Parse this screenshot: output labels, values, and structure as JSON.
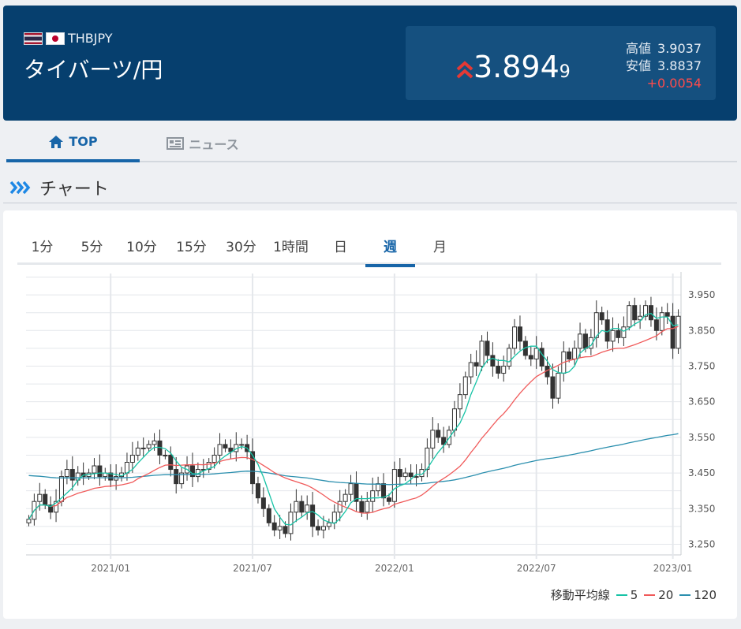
{
  "header": {
    "code": "THBJPY",
    "name": "タイバーツ/円",
    "price_main": "3.894",
    "price_sub": "9",
    "high_label": "高値",
    "high_value": "3.9037",
    "low_label": "安値",
    "low_value": "3.8837",
    "change": "+0.0054",
    "colors": {
      "bg": "#063f6e",
      "box": "#15507f",
      "up": "#e53935"
    }
  },
  "tabs": [
    {
      "label": "TOP",
      "icon": "home-icon"
    },
    {
      "label": "ニュース",
      "icon": "newspaper-icon"
    }
  ],
  "section": {
    "title": "チャート",
    "icon": "triple-chevron-right-icon"
  },
  "period_tabs": [
    "1分",
    "5分",
    "10分",
    "15分",
    "30分",
    "1時間",
    "日",
    "週",
    "月"
  ],
  "active_period": "週",
  "legend": {
    "title": "移動平均線",
    "items": [
      {
        "label": "5",
        "color": "#17c3a6"
      },
      {
        "label": "20",
        "color": "#f05a5a"
      },
      {
        "label": "120",
        "color": "#2b8fae"
      }
    ]
  },
  "chart_data": {
    "type": "candlestick",
    "interval": "weekly",
    "ylim": [
      3.22,
      4.01
    ],
    "y_ticks": [
      "3.250",
      "3.350",
      "3.450",
      "3.550",
      "3.650",
      "3.750",
      "3.850",
      "3.950"
    ],
    "x_ticks": [
      "2021/01",
      "2021/07",
      "2022/01",
      "2022/07",
      "2023/01"
    ],
    "x_tick_index": [
      15,
      41,
      67,
      93,
      118
    ],
    "close": [
      3.32,
      3.37,
      3.39,
      3.36,
      3.34,
      3.37,
      3.44,
      3.46,
      3.43,
      3.45,
      3.44,
      3.45,
      3.47,
      3.44,
      3.45,
      3.43,
      3.44,
      3.45,
      3.48,
      3.5,
      3.52,
      3.52,
      3.53,
      3.54,
      3.5,
      3.5,
      3.46,
      3.42,
      3.45,
      3.47,
      3.44,
      3.46,
      3.46,
      3.48,
      3.5,
      3.53,
      3.52,
      3.51,
      3.53,
      3.53,
      3.51,
      3.42,
      3.38,
      3.35,
      3.31,
      3.29,
      3.3,
      3.28,
      3.34,
      3.37,
      3.34,
      3.36,
      3.3,
      3.29,
      3.3,
      3.31,
      3.34,
      3.37,
      3.39,
      3.42,
      3.37,
      3.34,
      3.37,
      3.4,
      3.42,
      3.38,
      3.37,
      3.46,
      3.44,
      3.45,
      3.44,
      3.44,
      3.46,
      3.52,
      3.57,
      3.55,
      3.53,
      3.57,
      3.63,
      3.67,
      3.72,
      3.76,
      3.75,
      3.82,
      3.78,
      3.75,
      3.73,
      3.75,
      3.8,
      3.86,
      3.82,
      3.78,
      3.77,
      3.8,
      3.75,
      3.72,
      3.66,
      3.73,
      3.79,
      3.77,
      3.8,
      3.84,
      3.8,
      3.83,
      3.9,
      3.88,
      3.82,
      3.85,
      3.83,
      3.86,
      3.92,
      3.88,
      3.89,
      3.92,
      3.88,
      3.85,
      3.9,
      3.89,
      3.8,
      3.89
    ],
    "ma5_color": "#17c3a6",
    "ma20_color": "#f05a5a",
    "ma120_color": "#2b8fae"
  }
}
